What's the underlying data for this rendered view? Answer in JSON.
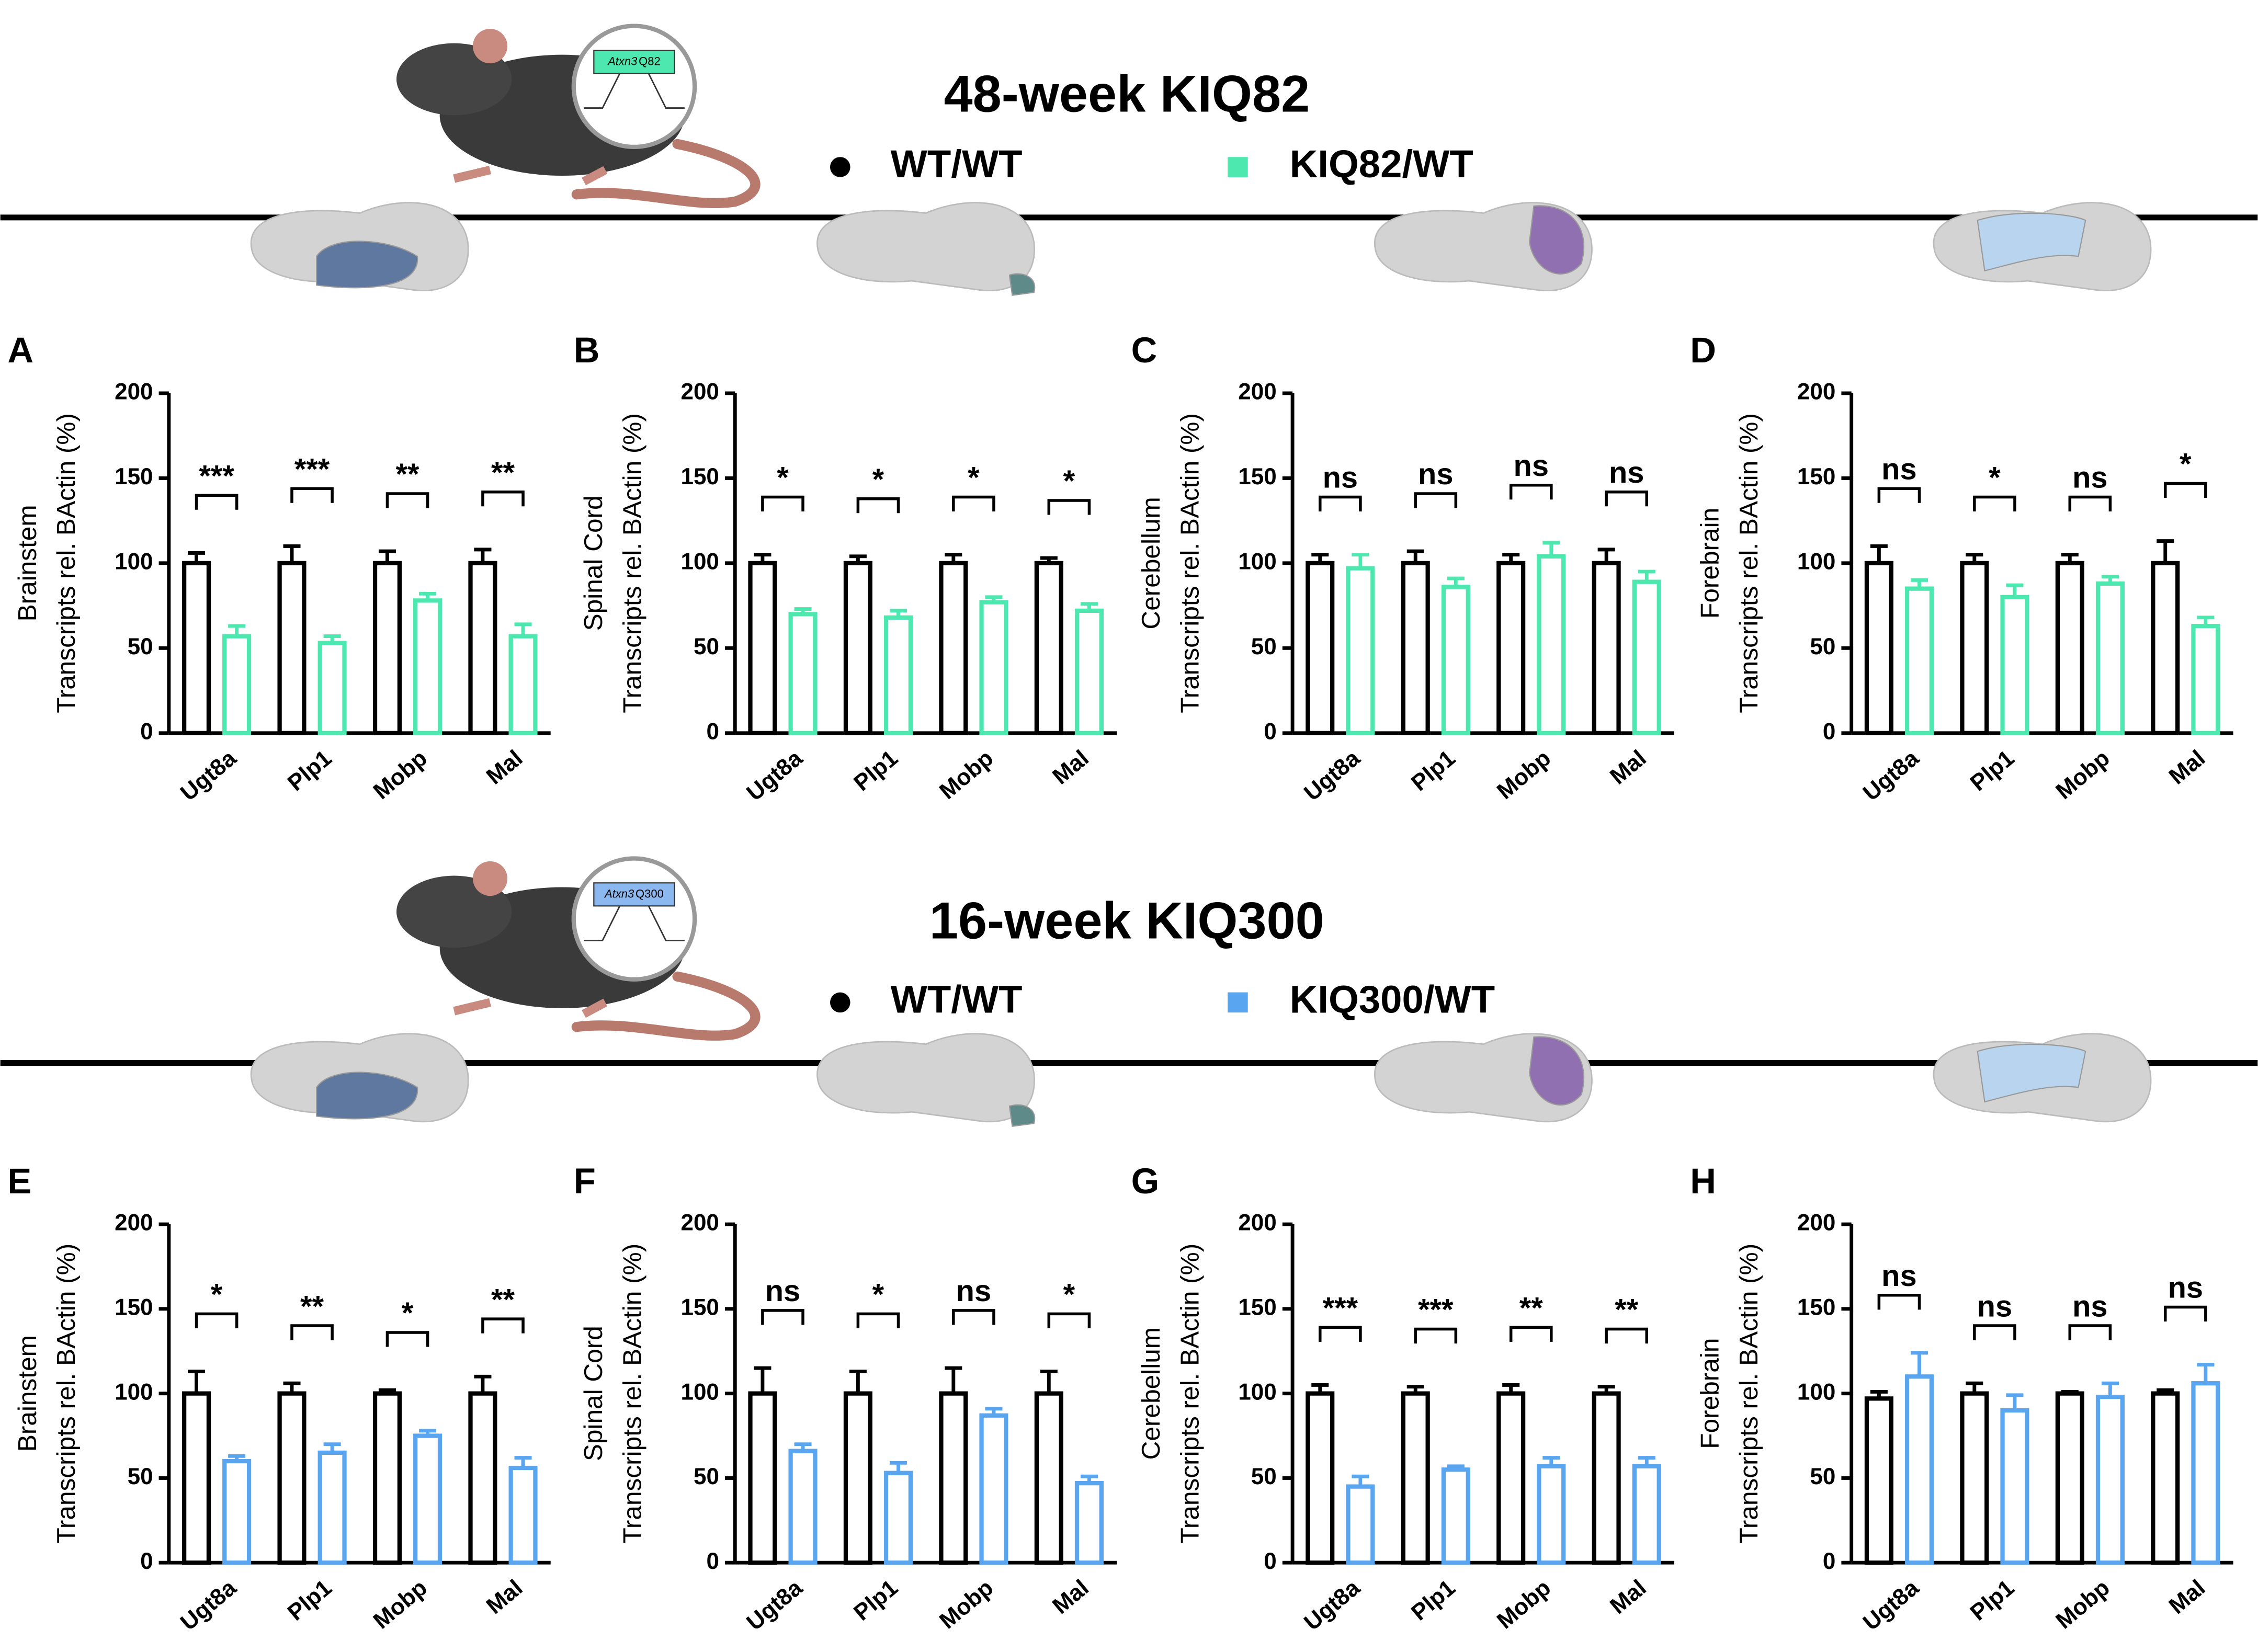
{
  "sections": [
    {
      "title": "48-week KIQ82",
      "gene": "Atxn3",
      "repeat": "Q82"
    },
    {
      "title": "16-week KIQ300",
      "gene": "Atxn3",
      "repeat": "Q300"
    }
  ],
  "chart_data": [
    {
      "type": "bar",
      "panel": "A",
      "region": "Brainstem",
      "region_color": "#5f78a0",
      "ylabel": "Transcripts rel. BActin (%)",
      "categories": [
        "Ugt8a",
        "Plp1",
        "Mobp",
        "Mal"
      ],
      "ylim": [
        0,
        200
      ],
      "yticks": [
        0,
        50,
        100,
        150,
        200
      ],
      "series": [
        {
          "name": "WT/WT",
          "color": "#000000",
          "values": [
            100,
            100,
            100,
            100
          ],
          "errors": [
            6,
            10,
            7,
            8
          ]
        },
        {
          "name": "KIQ82/WT",
          "color": "#4de8b0",
          "values": [
            57,
            53,
            78,
            57
          ],
          "errors": [
            6,
            4,
            4,
            7
          ]
        }
      ],
      "annotations": [
        "***",
        "***",
        "**",
        "**"
      ]
    },
    {
      "type": "bar",
      "panel": "B",
      "region": "Spinal Cord",
      "region_color": "#5e8a8a",
      "ylabel": "Transcripts rel. BActin (%)",
      "categories": [
        "Ugt8a",
        "Plp1",
        "Mobp",
        "Mal"
      ],
      "ylim": [
        0,
        200
      ],
      "yticks": [
        0,
        50,
        100,
        150,
        200
      ],
      "series": [
        {
          "name": "WT/WT",
          "color": "#000000",
          "values": [
            100,
            100,
            100,
            100
          ],
          "errors": [
            5,
            4,
            5,
            3
          ]
        },
        {
          "name": "KIQ82/WT",
          "color": "#4de8b0",
          "values": [
            70,
            68,
            77,
            72
          ],
          "errors": [
            3,
            4,
            3,
            4
          ]
        }
      ],
      "annotations": [
        "*",
        "*",
        "*",
        "*"
      ]
    },
    {
      "type": "bar",
      "panel": "C",
      "region": "Cerebellum",
      "region_color": "#9070b0",
      "ylabel": "Transcripts rel. BActin (%)",
      "categories": [
        "Ugt8a",
        "Plp1",
        "Mobp",
        "Mal"
      ],
      "ylim": [
        0,
        200
      ],
      "yticks": [
        0,
        50,
        100,
        150,
        200
      ],
      "series": [
        {
          "name": "WT/WT",
          "color": "#000000",
          "values": [
            100,
            100,
            100,
            100
          ],
          "errors": [
            5,
            7,
            5,
            8
          ]
        },
        {
          "name": "KIQ82/WT",
          "color": "#4de8b0",
          "values": [
            97,
            86,
            104,
            89
          ],
          "errors": [
            8,
            5,
            8,
            6
          ]
        }
      ],
      "annotations": [
        "ns",
        "ns",
        "ns",
        "ns"
      ]
    },
    {
      "type": "bar",
      "panel": "D",
      "region": "Forebrain",
      "region_color": "#b8d4ee",
      "ylabel": "Transcripts rel. BActin (%)",
      "categories": [
        "Ugt8a",
        "Plp1",
        "Mobp",
        "Mal"
      ],
      "ylim": [
        0,
        200
      ],
      "yticks": [
        0,
        50,
        100,
        150,
        200
      ],
      "series": [
        {
          "name": "WT/WT",
          "color": "#000000",
          "values": [
            100,
            100,
            100,
            100
          ],
          "errors": [
            10,
            5,
            5,
            13
          ]
        },
        {
          "name": "KIQ82/WT",
          "color": "#4de8b0",
          "values": [
            85,
            80,
            88,
            63
          ],
          "errors": [
            5,
            7,
            4,
            5
          ]
        }
      ],
      "annotations": [
        "ns",
        "*",
        "ns",
        "*"
      ]
    },
    {
      "type": "bar",
      "panel": "E",
      "region": "Brainstem",
      "region_color": "#5f78a0",
      "ylabel": "Transcripts rel. BActin (%)",
      "categories": [
        "Ugt8a",
        "Plp1",
        "Mobp",
        "Mal"
      ],
      "ylim": [
        0,
        200
      ],
      "yticks": [
        0,
        50,
        100,
        150,
        200
      ],
      "series": [
        {
          "name": "WT/WT",
          "color": "#000000",
          "values": [
            100,
            100,
            100,
            100
          ],
          "errors": [
            13,
            6,
            2,
            10
          ]
        },
        {
          "name": "KIQ300/WT",
          "color": "#5aa5f0",
          "values": [
            60,
            65,
            75,
            56
          ],
          "errors": [
            3,
            5,
            3,
            6
          ]
        }
      ],
      "annotations": [
        "*",
        "**",
        "*",
        "**"
      ]
    },
    {
      "type": "bar",
      "panel": "F",
      "region": "Spinal  Cord",
      "region_color": "#5e8a8a",
      "ylabel": "Transcripts rel. BActin (%)",
      "categories": [
        "Ugt8a",
        "Plp1",
        "Mobp",
        "Mal"
      ],
      "ylim": [
        0,
        200
      ],
      "yticks": [
        0,
        50,
        100,
        150,
        200
      ],
      "series": [
        {
          "name": "WT/WT",
          "color": "#000000",
          "values": [
            100,
            100,
            100,
            100
          ],
          "errors": [
            15,
            13,
            15,
            13
          ]
        },
        {
          "name": "KIQ300/WT",
          "color": "#5aa5f0",
          "values": [
            66,
            53,
            87,
            47
          ],
          "errors": [
            4,
            6,
            4,
            4
          ]
        }
      ],
      "annotations": [
        "ns",
        "*",
        "ns",
        "*"
      ]
    },
    {
      "type": "bar",
      "panel": "G",
      "region": "Cerebellum",
      "region_color": "#9070b0",
      "ylabel": "Transcripts rel. BActin (%)",
      "categories": [
        "Ugt8a",
        "Plp1",
        "Mobp",
        "Mal"
      ],
      "ylim": [
        0,
        200
      ],
      "yticks": [
        0,
        50,
        100,
        150,
        200
      ],
      "series": [
        {
          "name": "WT/WT",
          "color": "#000000",
          "values": [
            100,
            100,
            100,
            100
          ],
          "errors": [
            5,
            4,
            5,
            4
          ]
        },
        {
          "name": "KIQ300/WT",
          "color": "#5aa5f0",
          "values": [
            45,
            55,
            57,
            57
          ],
          "errors": [
            6,
            2,
            5,
            5
          ]
        }
      ],
      "annotations": [
        "***",
        "***",
        "**",
        "**"
      ]
    },
    {
      "type": "bar",
      "panel": "H",
      "region": "Forebrain",
      "region_color": "#b8d4ee",
      "ylabel": "Transcripts rel. BActin (%)",
      "categories": [
        "Ugt8a",
        "Plp1",
        "Mobp",
        "Mal"
      ],
      "ylim": [
        0,
        200
      ],
      "yticks": [
        0,
        50,
        100,
        150,
        200
      ],
      "series": [
        {
          "name": "WT/WT",
          "color": "#000000",
          "values": [
            97,
            100,
            100,
            100
          ],
          "errors": [
            4,
            6,
            1,
            2
          ]
        },
        {
          "name": "KIQ300/WT",
          "color": "#5aa5f0",
          "values": [
            110,
            90,
            98,
            106
          ],
          "errors": [
            14,
            9,
            8,
            11
          ]
        }
      ],
      "annotations": [
        "ns",
        "ns",
        "ns",
        "ns"
      ]
    }
  ]
}
